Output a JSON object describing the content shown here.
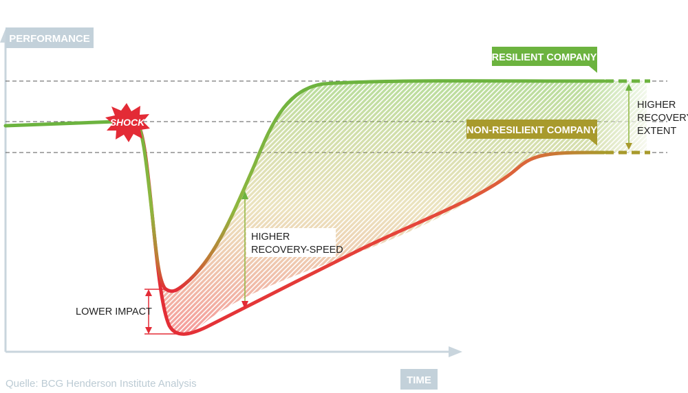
{
  "axes": {
    "y_label": "PERFORMANCE",
    "x_label": "TIME"
  },
  "shock_label": "SHOCK",
  "curves": {
    "resilient": {
      "label": "RESILIENT COMPANY",
      "color": "#6cb33f"
    },
    "non_resilient": {
      "label": "NON-RESILIENT COMPANY",
      "color": "#a89a2c"
    },
    "impact_color": "#e32b36"
  },
  "annotations": {
    "lower_impact": "LOWER IMPACT",
    "recovery_speed": [
      "HIGHER",
      "RECOVERY-SPEED"
    ],
    "recovery_extent": [
      "HIGHER",
      "RECOVERY-",
      "EXTENT"
    ]
  },
  "source": "Quelle: BCG Henderson Institute Analysis",
  "colors": {
    "axis": "#c9d5dd",
    "axis_tag_bg": "#c3d1da",
    "dashed": "#555555"
  }
}
